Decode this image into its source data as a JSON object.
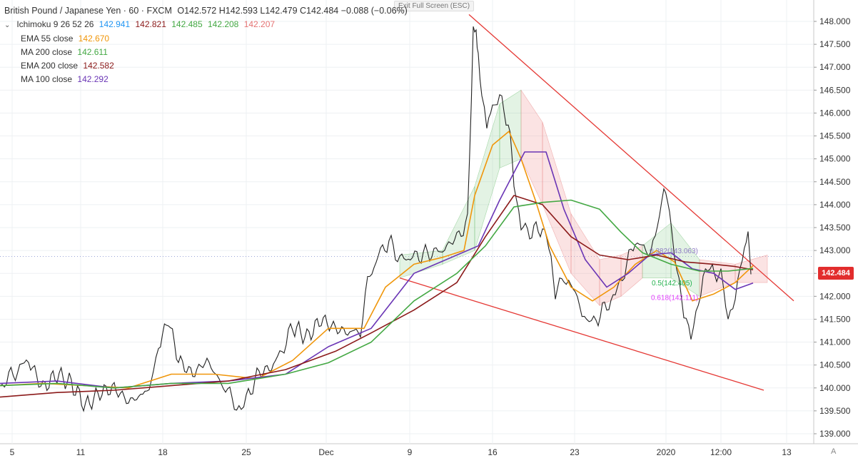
{
  "header": {
    "symbol": "British Pound / Japanese Yen · 60 · FXCM",
    "ohlc": "O142.572  H142.593  L142.479  C142.484  −0.088 (−0.06%)",
    "exit_label": "Exit Full Screen (ESC)"
  },
  "indicators": {
    "ichimoku": {
      "label": "Ichimoku 9 26 52 26",
      "v1": "142.941",
      "v2": "142.821",
      "v3": "142.485",
      "v4": "142.208",
      "v5": "142.207",
      "c1": "#2196f3",
      "c2": "#8b1a1a",
      "c3": "#4caf50",
      "c4": "#4caf50",
      "c5": "#e57373"
    },
    "ema55": {
      "label": "EMA 55 close",
      "value": "142.670",
      "color": "#f0960a"
    },
    "ma200": {
      "label": "MA 200 close",
      "value": "142.611",
      "color": "#43a843"
    },
    "ema200": {
      "label": "EMA 200 close",
      "value": "142.582",
      "color": "#8b1a1a"
    },
    "ma100": {
      "label": "MA 100 close",
      "value": "142.292",
      "color": "#6a35b5"
    }
  },
  "price_tag": "142.484",
  "axis_corner": "A",
  "chart_data": {
    "type": "line",
    "x_tick_labels": [
      "5",
      "11",
      "18",
      "25",
      "Dec",
      "9",
      "16",
      "23",
      "2020",
      "12:00",
      "13"
    ],
    "y_tick_labels": [
      "148.000",
      "147.500",
      "147.000",
      "146.500",
      "146.000",
      "145.500",
      "145.000",
      "144.500",
      "144.000",
      "143.500",
      "143.000",
      "142.500",
      "142.000",
      "141.500",
      "141.000",
      "140.500",
      "140.000",
      "139.500",
      "139.000"
    ],
    "ylim": [
      138.95,
      148.25
    ],
    "fib_labels": [
      {
        "text": "0.382(143.063)",
        "color": "#8e7cc3",
        "price": 143.0
      },
      {
        "text": "0.5(142.405)",
        "color": "#22b14c",
        "price": 142.3
      },
      {
        "text": "0.618(142.111)",
        "color": "#e040fb",
        "price": 141.98
      }
    ],
    "series": [
      {
        "key": "price",
        "color": "#222222",
        "x": [
          0,
          40,
          60,
          80,
          100,
          120,
          140,
          160,
          180,
          200,
          215,
          222,
          236,
          250,
          270,
          290,
          310,
          325,
          338,
          345,
          360,
          380,
          395,
          410,
          430,
          450,
          470,
          490,
          505,
          515,
          530,
          545,
          560,
          575,
          590,
          605,
          620,
          640,
          655,
          663,
          667,
          670,
          675,
          682,
          690,
          700,
          712,
          720,
          730,
          745,
          760,
          772,
          778,
          790,
          800,
          812,
          822,
          835,
          850,
          862,
          875,
          890,
          905,
          918,
          930,
          938,
          948,
          958,
          968,
          975,
          985,
          998,
          1010,
          1020,
          1030,
          1040,
          1048,
          1052
        ],
        "y": [
          140.05,
          140.6,
          140.0,
          140.3,
          140.1,
          139.6,
          139.9,
          140.0,
          139.7,
          139.85,
          140.2,
          140.9,
          141.5,
          140.6,
          140.3,
          140.6,
          140.1,
          139.8,
          139.5,
          139.7,
          140.3,
          140.45,
          140.8,
          141.35,
          141.1,
          141.5,
          141.3,
          141.2,
          141.25,
          142.3,
          142.9,
          143.2,
          142.8,
          142.85,
          142.9,
          142.95,
          143.0,
          143.3,
          143.6,
          147.85,
          147.7,
          147.2,
          146.5,
          145.7,
          146.2,
          146.3,
          145.8,
          144.6,
          143.5,
          143.4,
          143.5,
          142.9,
          142.0,
          142.5,
          142.2,
          141.9,
          141.35,
          141.5,
          141.8,
          142.0,
          142.6,
          143.2,
          143.0,
          143.2,
          144.4,
          143.9,
          142.6,
          141.5,
          141.2,
          141.7,
          142.4,
          142.6,
          142.4,
          141.5,
          142.1,
          142.8,
          143.4,
          142.48
        ]
      },
      {
        "key": "ema55",
        "color": "#f0960a",
        "x": [
          0,
          60,
          120,
          180,
          240,
          300,
          360,
          410,
          460,
          510,
          540,
          580,
          620,
          650,
          665,
          690,
          713,
          730,
          750,
          770,
          800,
          830,
          860,
          890,
          920,
          945,
          970,
          1000,
          1030,
          1055
        ],
        "y": [
          140.05,
          140.1,
          140.05,
          140.0,
          140.3,
          140.3,
          140.2,
          140.6,
          141.3,
          141.3,
          142.2,
          142.7,
          142.85,
          143.0,
          144.2,
          145.3,
          145.6,
          145.0,
          144.1,
          143.1,
          142.2,
          141.9,
          142.2,
          142.7,
          143.0,
          142.75,
          141.9,
          142.05,
          142.3,
          142.67
        ]
      },
      {
        "key": "ma100",
        "color": "#6a35b5",
        "x": [
          0,
          80,
          160,
          240,
          320,
          400,
          460,
          520,
          580,
          640,
          670,
          700,
          735,
          765,
          790,
          820,
          850,
          880,
          910,
          940,
          970,
          1000,
          1030,
          1055
        ],
        "y": [
          140.1,
          140.15,
          140.0,
          140.1,
          140.15,
          140.3,
          140.9,
          141.3,
          142.5,
          142.9,
          143.1,
          144.1,
          145.15,
          145.15,
          143.9,
          142.8,
          142.2,
          142.5,
          142.9,
          142.95,
          142.6,
          142.5,
          142.15,
          142.29
        ]
      },
      {
        "key": "ema200",
        "color": "#8b1a1a",
        "x": [
          0,
          80,
          160,
          240,
          320,
          400,
          470,
          520,
          580,
          640,
          680,
          720,
          760,
          800,
          840,
          880,
          920,
          960,
          1000,
          1030,
          1055
        ],
        "y": [
          139.8,
          139.9,
          139.95,
          140.05,
          140.15,
          140.4,
          140.8,
          141.2,
          141.7,
          142.3,
          143.3,
          144.2,
          144.0,
          143.3,
          142.9,
          142.8,
          142.9,
          142.75,
          142.7,
          142.65,
          142.58
        ]
      },
      {
        "key": "ma200",
        "color": "#43a843",
        "x": [
          0,
          80,
          160,
          240,
          320,
          400,
          460,
          520,
          580,
          640,
          680,
          720,
          760,
          800,
          840,
          870,
          900,
          940,
          980,
          1020,
          1055
        ],
        "y": [
          140.05,
          140.1,
          140.0,
          140.1,
          140.1,
          140.3,
          140.55,
          141.0,
          141.9,
          142.5,
          143.1,
          143.95,
          144.05,
          144.1,
          143.9,
          143.4,
          142.95,
          142.7,
          142.55,
          142.55,
          142.61
        ]
      }
    ],
    "cloud": [
      {
        "x": 560,
        "a": 142.4,
        "b": 142.9,
        "type": "green"
      },
      {
        "x": 620,
        "a": 142.7,
        "b": 143.0,
        "type": "green"
      },
      {
        "x": 665,
        "a": 143.0,
        "b": 144.4,
        "type": "green"
      },
      {
        "x": 700,
        "a": 144.8,
        "b": 146.2,
        "type": "green"
      },
      {
        "x": 730,
        "a": 145.0,
        "b": 146.5,
        "type": "red"
      },
      {
        "x": 760,
        "a": 144.0,
        "b": 145.8,
        "type": "red"
      },
      {
        "x": 800,
        "a": 142.5,
        "b": 143.8,
        "type": "red"
      },
      {
        "x": 840,
        "a": 141.8,
        "b": 142.8,
        "type": "red"
      },
      {
        "x": 870,
        "a": 142.0,
        "b": 142.9,
        "type": "red"
      },
      {
        "x": 900,
        "a": 142.4,
        "b": 143.1,
        "type": "green"
      },
      {
        "x": 940,
        "a": 142.4,
        "b": 143.6,
        "type": "green"
      },
      {
        "x": 980,
        "a": 142.0,
        "b": 142.8,
        "type": "red"
      },
      {
        "x": 1030,
        "a": 142.3,
        "b": 142.7,
        "type": "red"
      },
      {
        "x": 1075,
        "a": 142.3,
        "b": 142.9,
        "type": "green"
      }
    ],
    "trendlines": [
      {
        "x1": 657,
        "y1": 148.15,
        "x2": 1112,
        "y2": 141.9,
        "color": "#e53935"
      },
      {
        "x1": 560,
        "y1": 142.4,
        "x2": 1070,
        "y2": 139.95,
        "color": "#e53935"
      }
    ],
    "last_price": 142.484
  }
}
